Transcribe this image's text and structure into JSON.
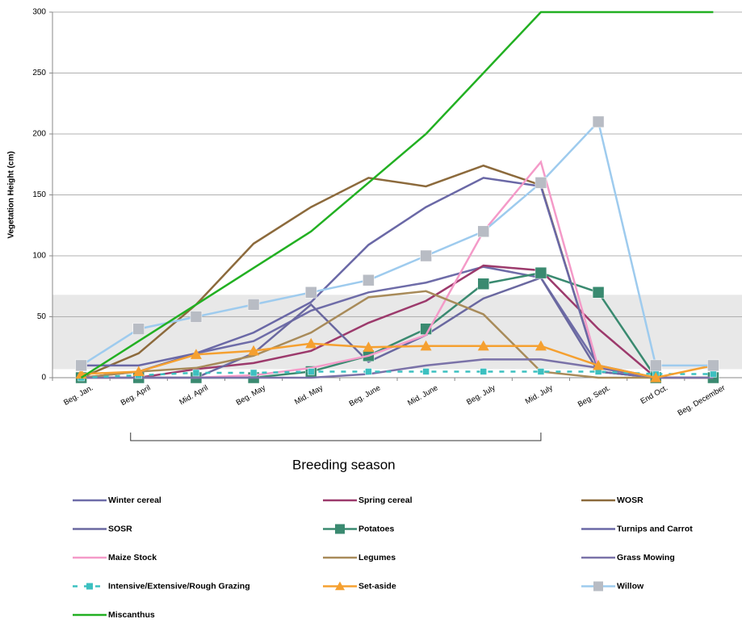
{
  "chart_data": {
    "type": "line",
    "y_label": "Vegetation Height (cm)",
    "annotation": "Breeding season",
    "band": [
      7,
      68
    ],
    "categories": [
      "Beg. Jan.",
      "Beg. April",
      "Mid. April",
      "Beg. May",
      "Mid. May",
      "Beg. June",
      "Mid. June",
      "Beg. July",
      "Mid. July",
      "Beg. Sept.",
      "End Oct.",
      "Beg. December"
    ],
    "ylim": [
      0,
      300
    ],
    "yticks": [
      0,
      50,
      100,
      150,
      200,
      250,
      300
    ],
    "grid": true,
    "series": [
      {
        "name": "Winter cereal",
        "color": "#6e6ca8",
        "values": [
          0,
          5,
          20,
          30,
          55,
          70,
          78,
          91,
          82,
          10,
          0,
          0
        ]
      },
      {
        "name": "Spring cereal",
        "color": "#9c3a6c",
        "values": [
          0,
          0,
          7,
          12,
          22,
          45,
          63,
          92,
          88,
          40,
          0,
          0
        ]
      },
      {
        "name": "WOSR",
        "color": "#8c6a3c",
        "values": [
          0,
          20,
          60,
          110,
          140,
          164,
          157,
          174,
          158,
          5,
          0,
          0
        ]
      },
      {
        "name": "SOSR",
        "color": "#6a68a0",
        "values": [
          0,
          0,
          0,
          20,
          60,
          13,
          35,
          65,
          82,
          5,
          0,
          0
        ]
      },
      {
        "name": "Potatoes",
        "color": "#3a8a70",
        "marker": "square",
        "values": [
          0,
          0,
          0,
          0,
          5,
          18,
          40,
          77,
          86,
          70,
          0,
          0
        ]
      },
      {
        "name": "Turnips and Carrot",
        "color": "#6a68a6",
        "values": [
          10,
          10,
          20,
          37,
          62,
          109,
          140,
          164,
          157,
          5,
          0,
          0
        ]
      },
      {
        "name": "Maize Stock",
        "color": "#f49ac8",
        "values": [
          0,
          0,
          0,
          2,
          8,
          18,
          35,
          120,
          177,
          8,
          0,
          0
        ]
      },
      {
        "name": "Legumes",
        "color": "#a88b5a",
        "values": [
          0,
          5,
          8,
          18,
          37,
          66,
          71,
          52,
          5,
          0,
          0,
          0
        ]
      },
      {
        "name": "Grass Mowing",
        "color": "#7a72a8",
        "values": [
          0,
          0,
          0,
          0,
          0,
          3,
          10,
          15,
          15,
          8,
          0,
          0
        ]
      },
      {
        "name": "Intensive/Extensive/Rough Grazing",
        "color": "#3cc0c0",
        "marker": "square",
        "dash": true,
        "values": [
          0,
          2,
          4,
          4,
          5,
          5,
          5,
          5,
          5,
          5,
          3,
          3
        ]
      },
      {
        "name": "Set-aside",
        "color": "#f5a030",
        "marker": "triangle",
        "values": [
          3,
          5,
          19,
          22,
          28,
          25,
          26,
          26,
          26,
          10,
          0,
          10
        ]
      },
      {
        "name": "Willow",
        "color": "#9ecbee",
        "marker": "square",
        "marker_color": "#b8bcc4",
        "values": [
          10,
          40,
          50,
          60,
          70,
          80,
          100,
          120,
          160,
          210,
          10,
          10
        ]
      },
      {
        "name": "Miscanthus",
        "color": "#22b022",
        "values": [
          0,
          30,
          60,
          90,
          120,
          160,
          200,
          250,
          300,
          300,
          300,
          300
        ]
      }
    ]
  }
}
